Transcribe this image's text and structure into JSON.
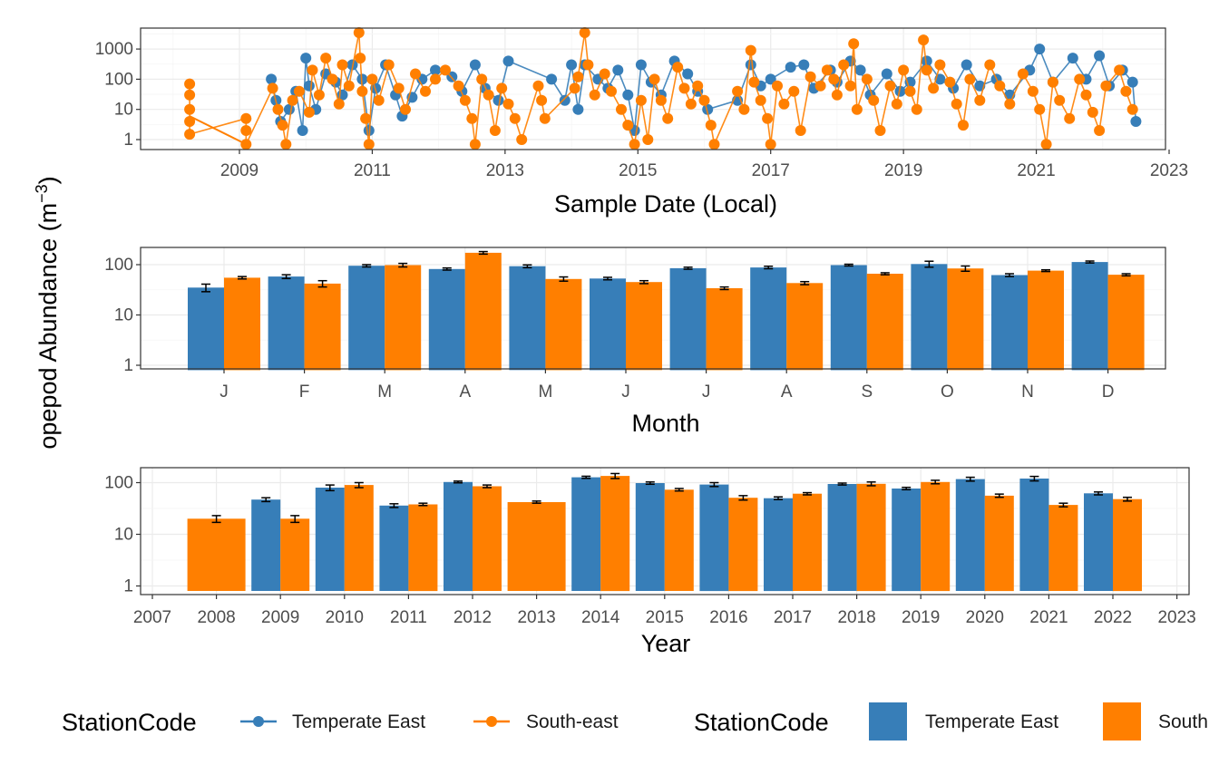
{
  "colors": {
    "temperate_east": "#377EB8",
    "south_east": "#FF7F00",
    "grid_major": "#EBEBEB",
    "grid_minor": "#F5F5F5",
    "panel_border": "#333333",
    "error_bar": "#000000"
  },
  "y_axis_title": "opepod Abundance (m",
  "y_axis_title_sup": "−3",
  "legend": {
    "points": {
      "title": "StationCode",
      "entries": [
        {
          "label": "Temperate East",
          "color": "#377EB8"
        },
        {
          "label": "South-east",
          "color": "#FF7F00"
        }
      ]
    },
    "bars": {
      "title": "StationCode",
      "entries": [
        {
          "label": "Temperate East",
          "color": "#377EB8"
        },
        {
          "label": "South",
          "color": "#FF7F00"
        }
      ]
    }
  },
  "chart_data": [
    {
      "type": "scatter",
      "panel": "time_series",
      "xlabel": "Sample Date (Local)",
      "x_tick_labels": [
        "2009",
        "2011",
        "2013",
        "2015",
        "2017",
        "2019",
        "2021",
        "2023"
      ],
      "y_tick_labels": [
        "1",
        "10",
        "100",
        "1000"
      ],
      "y_scale": "log10",
      "xlim": [
        2007.6,
        2023.4
      ],
      "ylim": [
        0.5,
        4500
      ],
      "grid": true,
      "legend_position": "bottom",
      "series": [
        {
          "name": "Temperate East",
          "color": "#377EB8",
          "points": [
            [
              2009.48,
              100
            ],
            [
              2009.55,
              20
            ],
            [
              2009.62,
              4
            ],
            [
              2009.75,
              10
            ],
            [
              2009.85,
              40
            ],
            [
              2009.95,
              2
            ],
            [
              2010.0,
              500
            ],
            [
              2010.05,
              60
            ],
            [
              2010.15,
              10
            ],
            [
              2010.3,
              150
            ],
            [
              2010.45,
              80
            ],
            [
              2010.55,
              30
            ],
            [
              2010.7,
              300
            ],
            [
              2010.85,
              100
            ],
            [
              2010.95,
              2
            ],
            [
              2011.05,
              50
            ],
            [
              2011.2,
              300
            ],
            [
              2011.35,
              30
            ],
            [
              2011.45,
              6
            ],
            [
              2011.6,
              25
            ],
            [
              2011.75,
              100
            ],
            [
              2011.95,
              200
            ],
            [
              2012.2,
              120
            ],
            [
              2012.35,
              40
            ],
            [
              2012.55,
              300
            ],
            [
              2012.7,
              50
            ],
            [
              2012.9,
              20
            ],
            [
              2013.05,
              400
            ],
            [
              2013.7,
              100
            ],
            [
              2013.9,
              20
            ],
            [
              2014.0,
              300
            ],
            [
              2014.1,
              10
            ],
            [
              2014.2,
              300
            ],
            [
              2014.4,
              100
            ],
            [
              2014.55,
              50
            ],
            [
              2014.7,
              200
            ],
            [
              2014.85,
              30
            ],
            [
              2014.95,
              2
            ],
            [
              2015.05,
              300
            ],
            [
              2015.2,
              80
            ],
            [
              2015.35,
              30
            ],
            [
              2015.55,
              400
            ],
            [
              2015.75,
              150
            ],
            [
              2015.9,
              40
            ],
            [
              2016.05,
              10
            ],
            [
              2016.5,
              20
            ],
            [
              2016.7,
              300
            ],
            [
              2016.85,
              60
            ],
            [
              2017.0,
              100
            ],
            [
              2017.3,
              250
            ],
            [
              2017.5,
              300
            ],
            [
              2017.65,
              50
            ],
            [
              2017.9,
              200
            ],
            [
              2018.0,
              80
            ],
            [
              2018.2,
              400
            ],
            [
              2018.35,
              200
            ],
            [
              2018.5,
              30
            ],
            [
              2018.75,
              150
            ],
            [
              2018.95,
              40
            ],
            [
              2019.1,
              80
            ],
            [
              2019.35,
              400
            ],
            [
              2019.55,
              100
            ],
            [
              2019.75,
              50
            ],
            [
              2019.95,
              300
            ],
            [
              2020.15,
              60
            ],
            [
              2020.4,
              100
            ],
            [
              2020.6,
              30
            ],
            [
              2020.9,
              200
            ],
            [
              2021.05,
              1000
            ],
            [
              2021.25,
              80
            ],
            [
              2021.55,
              500
            ],
            [
              2021.75,
              100
            ],
            [
              2021.95,
              600
            ],
            [
              2022.1,
              60
            ],
            [
              2022.3,
              200
            ],
            [
              2022.45,
              80
            ],
            [
              2022.5,
              4
            ]
          ]
        },
        {
          "name": "South-east",
          "color": "#FF7F00",
          "connector": [
            [
              2008.25,
              6
            ],
            [
              2009.1,
              0.7
            ]
          ],
          "points": [
            [
              2008.25,
              70
            ],
            [
              2008.25,
              30
            ],
            [
              2008.25,
              10
            ],
            [
              2008.25,
              4
            ],
            [
              2008.25,
              1.5
            ],
            [
              2009.1,
              5
            ],
            [
              2009.1,
              2
            ],
            [
              2009.1,
              0.7
            ],
            [
              2009.5,
              50
            ],
            [
              2009.58,
              10
            ],
            [
              2009.65,
              3
            ],
            [
              2009.7,
              0.7
            ],
            [
              2009.8,
              20
            ],
            [
              2009.9,
              40
            ],
            [
              2010.05,
              8
            ],
            [
              2010.1,
              200
            ],
            [
              2010.2,
              30
            ],
            [
              2010.3,
              500
            ],
            [
              2010.4,
              100
            ],
            [
              2010.5,
              15
            ],
            [
              2010.55,
              300
            ],
            [
              2010.65,
              60
            ],
            [
              2010.8,
              3500
            ],
            [
              2010.82,
              500
            ],
            [
              2010.85,
              40
            ],
            [
              2010.9,
              5
            ],
            [
              2010.95,
              0.7
            ],
            [
              2011.0,
              100
            ],
            [
              2011.1,
              20
            ],
            [
              2011.25,
              300
            ],
            [
              2011.4,
              50
            ],
            [
              2011.5,
              10
            ],
            [
              2011.65,
              150
            ],
            [
              2011.8,
              40
            ],
            [
              2011.95,
              100
            ],
            [
              2012.1,
              200
            ],
            [
              2012.3,
              60
            ],
            [
              2012.4,
              20
            ],
            [
              2012.5,
              5
            ],
            [
              2012.55,
              0.7
            ],
            [
              2012.65,
              100
            ],
            [
              2012.75,
              30
            ],
            [
              2012.85,
              2
            ],
            [
              2012.95,
              50
            ],
            [
              2013.05,
              15
            ],
            [
              2013.15,
              5
            ],
            [
              2013.25,
              1
            ],
            [
              2013.5,
              60
            ],
            [
              2013.55,
              20
            ],
            [
              2013.6,
              5
            ],
            [
              2014.05,
              50
            ],
            [
              2014.1,
              120
            ],
            [
              2014.2,
              3500
            ],
            [
              2014.25,
              300
            ],
            [
              2014.35,
              30
            ],
            [
              2014.5,
              150
            ],
            [
              2014.6,
              40
            ],
            [
              2014.75,
              10
            ],
            [
              2014.85,
              3
            ],
            [
              2014.95,
              0.7
            ],
            [
              2015.05,
              20
            ],
            [
              2015.15,
              1
            ],
            [
              2015.25,
              100
            ],
            [
              2015.35,
              20
            ],
            [
              2015.45,
              5
            ],
            [
              2015.6,
              250
            ],
            [
              2015.7,
              50
            ],
            [
              2015.8,
              15
            ],
            [
              2015.9,
              60
            ],
            [
              2016.0,
              20
            ],
            [
              2016.1,
              3
            ],
            [
              2016.15,
              0.7
            ],
            [
              2016.5,
              40
            ],
            [
              2016.6,
              10
            ],
            [
              2016.7,
              900
            ],
            [
              2016.75,
              80
            ],
            [
              2016.85,
              20
            ],
            [
              2016.95,
              5
            ],
            [
              2017.0,
              0.7
            ],
            [
              2017.1,
              60
            ],
            [
              2017.2,
              15
            ],
            [
              2017.35,
              40
            ],
            [
              2017.45,
              2
            ],
            [
              2017.6,
              120
            ],
            [
              2017.75,
              60
            ],
            [
              2017.85,
              200
            ],
            [
              2017.95,
              100
            ],
            [
              2018.0,
              30
            ],
            [
              2018.1,
              300
            ],
            [
              2018.2,
              60
            ],
            [
              2018.25,
              1500
            ],
            [
              2018.3,
              10
            ],
            [
              2018.45,
              100
            ],
            [
              2018.55,
              20
            ],
            [
              2018.65,
              2
            ],
            [
              2018.8,
              60
            ],
            [
              2018.9,
              15
            ],
            [
              2019.0,
              200
            ],
            [
              2019.1,
              40
            ],
            [
              2019.2,
              10
            ],
            [
              2019.3,
              2000
            ],
            [
              2019.35,
              200
            ],
            [
              2019.45,
              50
            ],
            [
              2019.55,
              300
            ],
            [
              2019.7,
              80
            ],
            [
              2019.8,
              15
            ],
            [
              2019.9,
              3
            ],
            [
              2020.0,
              100
            ],
            [
              2020.15,
              20
            ],
            [
              2020.3,
              300
            ],
            [
              2020.45,
              60
            ],
            [
              2020.6,
              15
            ],
            [
              2020.8,
              150
            ],
            [
              2020.95,
              40
            ],
            [
              2021.05,
              10
            ],
            [
              2021.15,
              0.7
            ],
            [
              2021.25,
              80
            ],
            [
              2021.35,
              20
            ],
            [
              2021.5,
              5
            ],
            [
              2021.65,
              100
            ],
            [
              2021.75,
              30
            ],
            [
              2021.85,
              8
            ],
            [
              2021.95,
              2
            ],
            [
              2022.05,
              60
            ],
            [
              2022.25,
              200
            ],
            [
              2022.35,
              40
            ],
            [
              2022.45,
              10
            ]
          ]
        }
      ]
    },
    {
      "type": "bar",
      "panel": "monthly",
      "xlabel": "Month",
      "categories": [
        "J",
        "F",
        "M",
        "A",
        "M",
        "J",
        "J",
        "A",
        "S",
        "O",
        "N",
        "D"
      ],
      "y_tick_labels": [
        "1",
        "10",
        "100"
      ],
      "y_scale": "log10",
      "ylim": [
        0.8,
        250
      ],
      "grid": true,
      "series": [
        {
          "name": "Temperate East",
          "color": "#377EB8",
          "values": [
            35,
            58,
            95,
            82,
            93,
            53,
            85,
            88,
            98,
            103,
            62,
            113
          ],
          "errors": [
            6,
            5,
            5,
            4,
            6,
            3,
            4,
            5,
            4,
            14,
            4,
            5
          ]
        },
        {
          "name": "South-east",
          "color": "#FF7F00",
          "values": [
            55,
            42,
            98,
            172,
            52,
            45,
            34,
            43,
            66,
            84,
            76,
            63
          ],
          "errors": [
            3,
            6,
            8,
            10,
            5,
            3,
            2,
            3,
            3,
            10,
            3,
            3
          ]
        }
      ]
    },
    {
      "type": "bar",
      "panel": "yearly",
      "xlabel": "Year",
      "categories": [
        "2007",
        "2008",
        "2009",
        "2010",
        "2011",
        "2012",
        "2013",
        "2014",
        "2015",
        "2016",
        "2017",
        "2018",
        "2019",
        "2020",
        "2021",
        "2022",
        "2023"
      ],
      "y_tick_labels": [
        "1",
        "10",
        "100"
      ],
      "y_scale": "log10",
      "ylim": [
        0.8,
        250
      ],
      "grid": true,
      "series": [
        {
          "name": "Temperate East",
          "color": "#377EB8",
          "values": [
            null,
            null,
            47,
            80,
            36,
            103,
            null,
            127,
            98,
            92,
            50,
            94,
            77,
            117,
            120,
            62,
            null
          ],
          "errors": [
            0,
            0,
            4,
            10,
            3,
            4,
            0,
            6,
            5,
            8,
            3,
            4,
            4,
            10,
            12,
            4,
            0
          ]
        },
        {
          "name": "South-east",
          "color": "#FF7F00",
          "values": [
            null,
            20,
            20,
            90,
            38,
            85,
            42,
            135,
            73,
            51,
            61,
            95,
            103,
            56,
            37,
            48,
            null
          ],
          "errors": [
            0,
            3,
            3,
            10,
            2,
            5,
            2,
            15,
            4,
            5,
            3,
            8,
            8,
            4,
            3,
            4,
            0
          ]
        }
      ]
    }
  ]
}
